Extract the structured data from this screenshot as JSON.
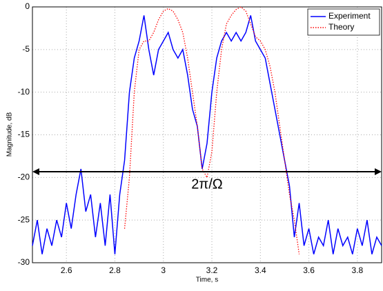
{
  "chart_data": {
    "type": "line",
    "xlabel": "Time, s",
    "ylabel": "Magnitude, dB",
    "x": [
      2.46,
      2.48,
      2.5,
      2.52,
      2.54,
      2.56,
      2.58,
      2.6,
      2.62,
      2.64,
      2.66,
      2.68,
      2.7,
      2.72,
      2.74,
      2.76,
      2.78,
      2.8,
      2.82,
      2.84,
      2.86,
      2.88,
      2.9,
      2.92,
      2.94,
      2.96,
      2.98,
      3.0,
      3.02,
      3.04,
      3.06,
      3.08,
      3.1,
      3.12,
      3.14,
      3.16,
      3.18,
      3.2,
      3.22,
      3.24,
      3.26,
      3.28,
      3.3,
      3.32,
      3.34,
      3.36,
      3.38,
      3.4,
      3.42,
      3.44,
      3.46,
      3.48,
      3.5,
      3.52,
      3.54,
      3.56,
      3.58,
      3.6,
      3.62,
      3.64,
      3.66,
      3.68,
      3.7,
      3.72,
      3.74,
      3.76,
      3.78,
      3.8,
      3.82,
      3.84,
      3.86,
      3.88,
      3.9
    ],
    "series": [
      {
        "name": "Experiment",
        "color": "#0000ff",
        "style": "solid",
        "values": [
          -28,
          -25,
          -29,
          -26,
          -28,
          -25,
          -27,
          -23,
          -26,
          -22,
          -19,
          -24,
          -22,
          -27,
          -23,
          -28,
          -22,
          -29,
          -22,
          -18,
          -10,
          -6,
          -4,
          -1,
          -5,
          -8,
          -5,
          -4,
          -3,
          -5,
          -6,
          -5,
          -8,
          -12,
          -14,
          -19,
          -16,
          -10,
          -6,
          -4,
          -3,
          -4,
          -3,
          -4,
          -3,
          -1,
          -4,
          -5,
          -6,
          -9,
          -12,
          -15,
          -18,
          -21,
          -27,
          -23,
          -28,
          -26,
          -29,
          -27,
          -28,
          -25,
          -29,
          -26,
          -28,
          -27,
          -29,
          -26,
          -28,
          -25,
          -29,
          -27,
          -28
        ]
      },
      {
        "name": "Theory",
        "color": "#ff0000",
        "style": "dotted",
        "values": [
          null,
          null,
          null,
          null,
          null,
          null,
          null,
          null,
          null,
          null,
          null,
          null,
          null,
          null,
          null,
          null,
          null,
          null,
          null,
          -26,
          -20,
          -10,
          -5,
          -4,
          -4,
          -3,
          -1.5,
          -0.5,
          -0.2,
          -0.5,
          -1.5,
          -3,
          -6,
          -10,
          -14,
          -19,
          -20,
          -17,
          -10,
          -5,
          -2,
          -1,
          -0.3,
          0,
          -0.5,
          -2,
          -3.5,
          -4,
          -5,
          -7,
          -10,
          -14,
          -18,
          -22,
          -25,
          -29,
          null,
          null,
          null,
          null,
          null,
          null,
          null,
          null,
          null,
          null,
          null,
          null,
          null,
          null,
          null,
          null,
          null
        ]
      }
    ],
    "xlim": [
      2.46,
      3.9
    ],
    "ylim": [
      -30,
      0
    ],
    "xticks": [
      2.6,
      2.8,
      3,
      3.2,
      3.4,
      3.6,
      3.8
    ],
    "yticks": [
      -30,
      -25,
      -20,
      -15,
      -10,
      -5,
      0
    ],
    "grid": true,
    "legend": "upper right",
    "annotation": "2π/Ω"
  }
}
